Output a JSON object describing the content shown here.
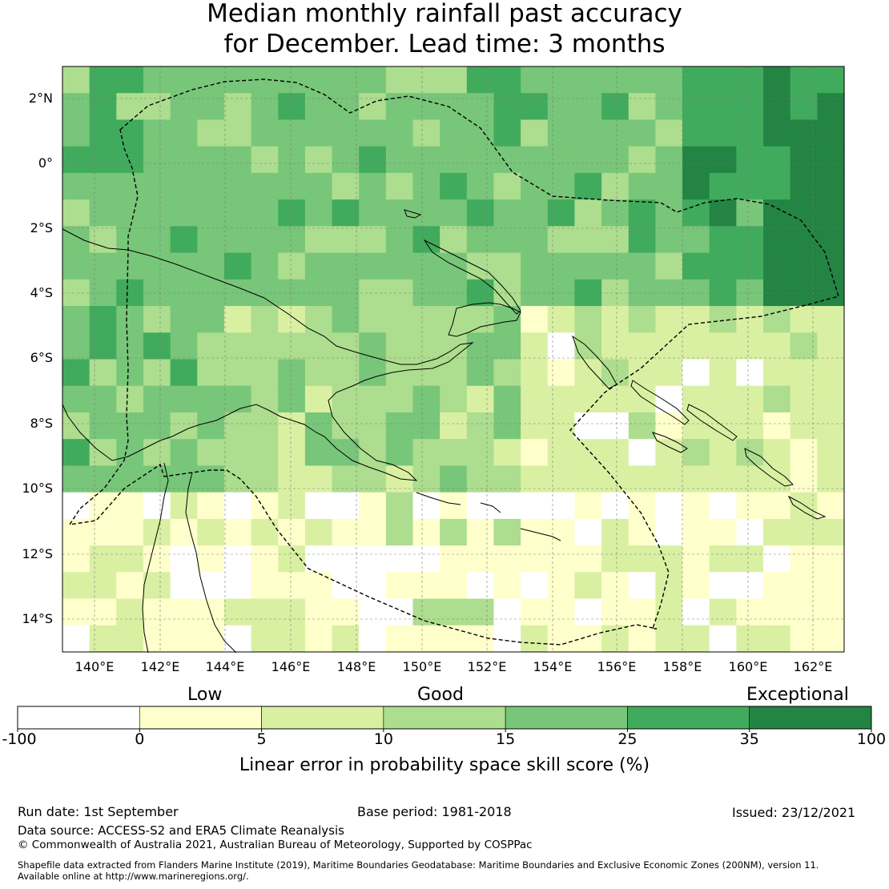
{
  "title": {
    "line1": "Median monthly rainfall past accuracy",
    "line2": "for December. Lead time: 3 months"
  },
  "map": {
    "lat_labels": [
      "2°N",
      "0°",
      "2°S",
      "4°S",
      "6°S",
      "8°S",
      "10°S",
      "12°S",
      "14°S"
    ],
    "lon_labels": [
      "140°E",
      "142°E",
      "144°E",
      "146°E",
      "148°E",
      "150°E",
      "152°E",
      "154°E",
      "156°E",
      "158°E",
      "160°E",
      "162°E"
    ]
  },
  "legend": {
    "categories": [
      "Low",
      "Good",
      "Exceptional"
    ],
    "ticks": [
      "-100",
      "0",
      "5",
      "10",
      "15",
      "25",
      "35",
      "100"
    ],
    "colors": [
      "#ffffff",
      "#ffffcc",
      "#d9f0a3",
      "#addd8e",
      "#78c679",
      "#41ab5d",
      "#238443"
    ],
    "title": "Linear error in probability space skill score (%)"
  },
  "footer": {
    "run_date": "Run date: 1st September",
    "base_period": "Base period: 1981-2018",
    "issued": "Issued: 23/12/2021",
    "data_source": "Data source: ACCESS-S2 and ERA5 Climate Reanalysis",
    "copyright": "© Commonwealth of Australia 2021, Australian Bureau of Meteorology, Supported by COSPPac",
    "shapefile_line1": "Shapefile data extracted from Flanders Marine Institute (2019), Maritime Boundaries Geodatabase: Maritime Boundaries and Exclusive Economic Zones (200NM), version 11.",
    "shapefile_line2": "Available online at http://www.marineregions.org/."
  }
}
